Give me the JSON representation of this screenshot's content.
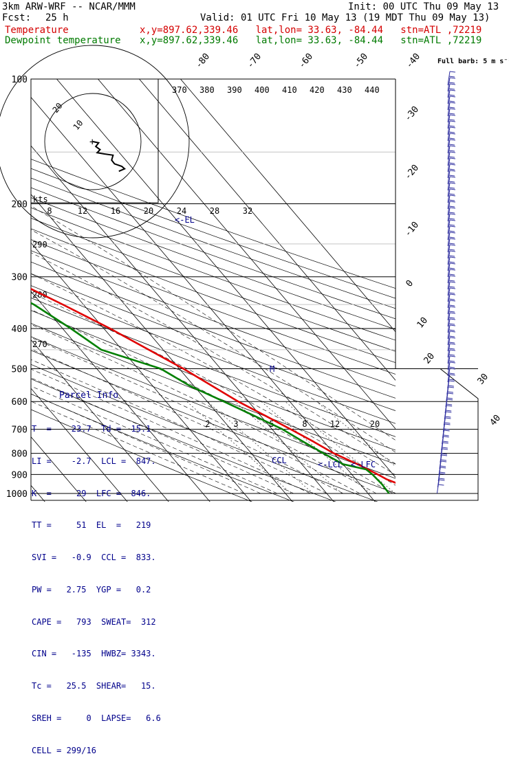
{
  "header": {
    "model": "3km ARW-WRF -- NCAR/MMM",
    "fcst_label": "Fcst:",
    "fcst_value": "25 h",
    "init": "Init: 00 UTC Thu 09 May 13",
    "valid": "Valid: 01 UTC Fri 10 May 13 (19 MDT Thu 09 May 13)",
    "temperature_label": "Temperature",
    "temperature_meta": "x,y=897.62,339.46   lat,lon= 33.63, -84.44   stn=ATL ,72219",
    "dewpoint_label": "Dewpoint temperature",
    "dewpoint_meta": "x,y=897.62,339.46   lat,lon= 33.63, -84.44   stn=ATL ,72219"
  },
  "parcel_info": {
    "title": "Parcel Info",
    "rows": [
      "T  =    23.7  Td =  15.1",
      "LI =    -2.7  LCL =  847.",
      "K  =     29  LFC =  846.",
      "TT =     51  EL  =   219",
      "SVI =   -0.9  CCL =  833.",
      "PW =   2.75  YGP =   0.2",
      "CAPE =   793  SWEAT=  312",
      "CIN =   -135  HWBZ= 3343.",
      "Tc =   25.5  SHEAR=   15.",
      "SREH =     0  LAPSE=   6.6",
      "CELL = 299/16"
    ]
  },
  "chart_data": {
    "type": "skew-t",
    "pressure_levels": [
      100,
      200,
      300,
      400,
      500,
      600,
      700,
      800,
      900,
      1000
    ],
    "isotherm_labels_top": [
      "-80",
      "-70",
      "-60",
      "-50",
      "-40"
    ],
    "isotherm_labels_right": [
      "-30",
      "-20",
      "-10",
      "0",
      "10",
      "20",
      "30",
      "40"
    ],
    "theta_labels_top": [
      "370",
      "380",
      "390",
      "400",
      "410",
      "420",
      "430",
      "440"
    ],
    "theta_labels_left": [
      "290",
      "280",
      "270"
    ],
    "mixing_ratio_labels": [
      "2",
      "3",
      "5",
      "8",
      "12",
      "20"
    ],
    "hodograph_speed_labels": [
      "8",
      "12",
      "16",
      "20",
      "24",
      "28",
      "32"
    ],
    "hodograph_unit": "kts",
    "hodograph_ring_labels": [
      "10",
      "20"
    ],
    "wind_barb_note": "Full barb: 5 m s⁻¹",
    "annotations": [
      "<-EL",
      "<-LCL",
      "<-LFC",
      "CCL",
      "M"
    ],
    "series": [
      {
        "name": "Temperature",
        "color": "#e00000",
        "points": [
          {
            "p": 1000,
            "t": 23.7
          },
          {
            "p": 950,
            "t": 19.5
          },
          {
            "p": 925,
            "t": 17.5
          },
          {
            "p": 900,
            "t": 16.3
          },
          {
            "p": 850,
            "t": 13.5
          },
          {
            "p": 800,
            "t": 10.0
          },
          {
            "p": 750,
            "t": 7.5
          },
          {
            "p": 700,
            "t": 4.5
          },
          {
            "p": 650,
            "t": 1.2
          },
          {
            "p": 600,
            "t": -2.5
          },
          {
            "p": 500,
            "t": -9.0
          },
          {
            "p": 450,
            "t": -13.5
          },
          {
            "p": 400,
            "t": -18.5
          },
          {
            "p": 350,
            "t": -25.0
          },
          {
            "p": 300,
            "t": -33.0
          },
          {
            "p": 250,
            "t": -42.0
          },
          {
            "p": 220,
            "t": -50.0
          },
          {
            "p": 200,
            "t": -55.0
          },
          {
            "p": 175,
            "t": -60.0
          },
          {
            "p": 150,
            "t": -63.0
          },
          {
            "p": 125,
            "t": -66.0
          },
          {
            "p": 100,
            "t": -69.0
          }
        ]
      },
      {
        "name": "Dewpoint temperature",
        "color": "#008000",
        "points": [
          {
            "p": 1000,
            "t": 15.1
          },
          {
            "p": 950,
            "t": 15.3
          },
          {
            "p": 900,
            "t": 15.0
          },
          {
            "p": 875,
            "t": 14.5
          },
          {
            "p": 850,
            "t": 10.0
          },
          {
            "p": 800,
            "t": 7.5
          },
          {
            "p": 750,
            "t": 5.0
          },
          {
            "p": 700,
            "t": 2.5
          },
          {
            "p": 650,
            "t": -1.5
          },
          {
            "p": 600,
            "t": -6.0
          },
          {
            "p": 550,
            "t": -11.0
          },
          {
            "p": 500,
            "t": -14.5
          },
          {
            "p": 450,
            "t": -25.0
          },
          {
            "p": 400,
            "t": -28.0
          },
          {
            "p": 350,
            "t": -32.0
          },
          {
            "p": 300,
            "t": -39.0
          },
          {
            "p": 250,
            "t": -50.0
          },
          {
            "p": 220,
            "t": -53.0
          },
          {
            "p": 200,
            "t": -58.0
          },
          {
            "p": 175,
            "t": -66.0
          },
          {
            "p": 150,
            "t": -74.0
          },
          {
            "p": 125,
            "t": -82.0
          },
          {
            "p": 100,
            "t": -87.0
          }
        ]
      }
    ],
    "hodograph": [
      {
        "u": 0,
        "v": 0
      },
      {
        "u": 4,
        "v": 2
      },
      {
        "u": 2,
        "v": 8
      },
      {
        "u": 5,
        "v": 13
      },
      {
        "u": 3,
        "v": 18
      },
      {
        "u": 8,
        "v": 20
      },
      {
        "u": 14,
        "v": 22
      },
      {
        "u": 13,
        "v": 30
      },
      {
        "u": 15,
        "v": 36
      },
      {
        "u": 20,
        "v": 40
      },
      {
        "u": 22,
        "v": 44
      },
      {
        "u": 18,
        "v": 48
      }
    ],
    "colors": {
      "temperature": "#e00000",
      "dewpoint": "#008000",
      "barbs": "#3030a0",
      "panel_text": "#00008b"
    }
  }
}
